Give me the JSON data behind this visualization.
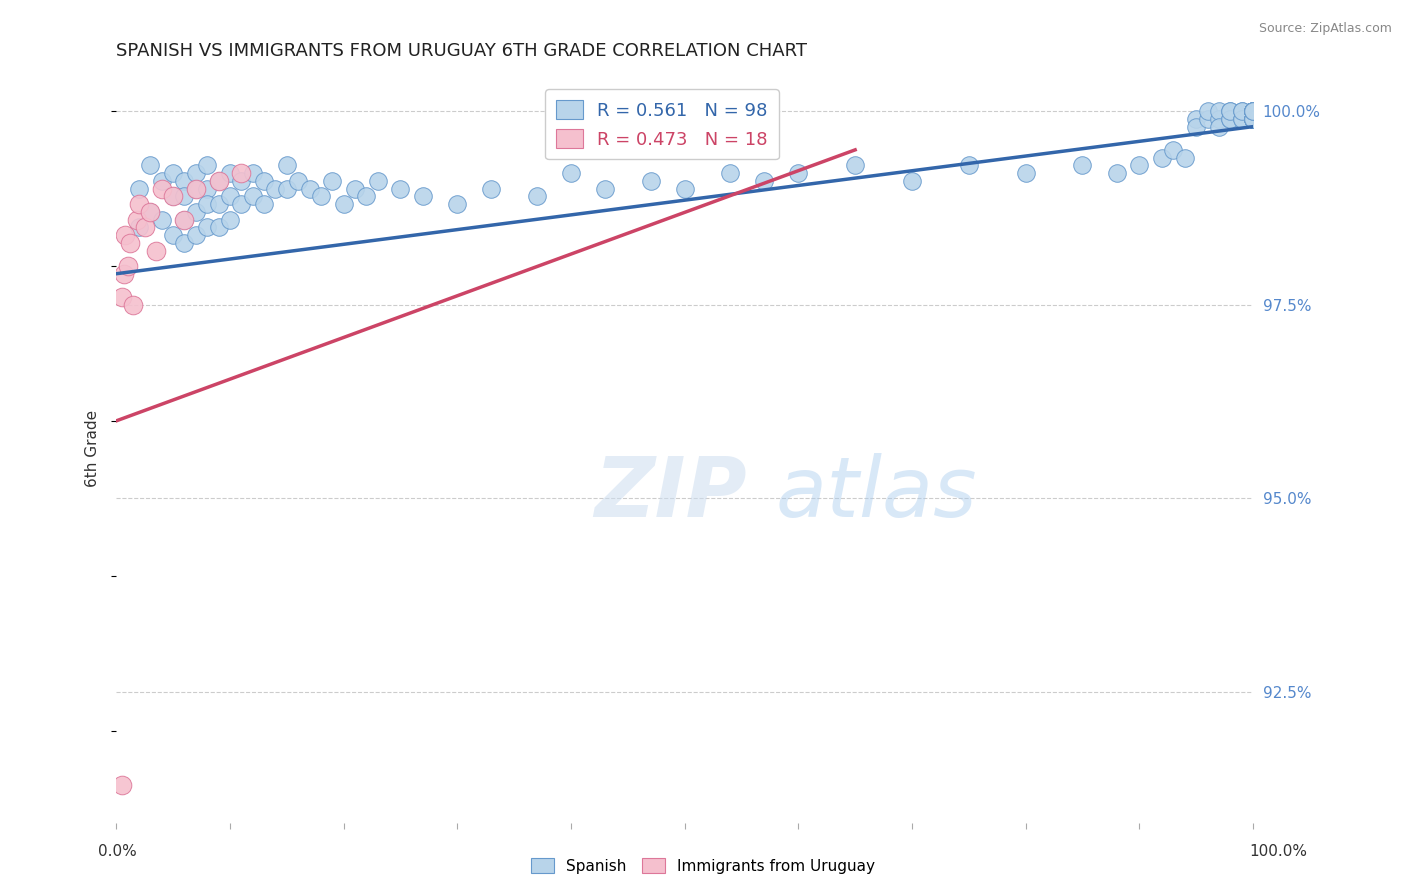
{
  "title": "SPANISH VS IMMIGRANTS FROM URUGUAY 6TH GRADE CORRELATION CHART",
  "source": "Source: ZipAtlas.com",
  "ylabel": "6th Grade",
  "ytick_labels": [
    "92.5%",
    "95.0%",
    "97.5%",
    "100.0%"
  ],
  "ytick_values": [
    0.925,
    0.95,
    0.975,
    1.0
  ],
  "xlim": [
    0.0,
    1.0
  ],
  "ylim": [
    0.908,
    1.005
  ],
  "legend_blue_r": "R = 0.561",
  "legend_blue_n": "N = 98",
  "legend_pink_r": "R = 0.473",
  "legend_pink_n": "N = 18",
  "blue_fill": "#b8d4ea",
  "blue_edge": "#6699cc",
  "pink_fill": "#f5c0ce",
  "pink_edge": "#dd7799",
  "blue_line": "#3366aa",
  "pink_line": "#cc4466",
  "title_fontsize": 13,
  "spanish_x": [
    0.02,
    0.02,
    0.03,
    0.03,
    0.04,
    0.04,
    0.05,
    0.05,
    0.05,
    0.06,
    0.06,
    0.06,
    0.06,
    0.07,
    0.07,
    0.07,
    0.07,
    0.08,
    0.08,
    0.08,
    0.08,
    0.09,
    0.09,
    0.09,
    0.1,
    0.1,
    0.1,
    0.11,
    0.11,
    0.12,
    0.12,
    0.13,
    0.13,
    0.14,
    0.15,
    0.15,
    0.16,
    0.17,
    0.18,
    0.19,
    0.2,
    0.21,
    0.22,
    0.23,
    0.25,
    0.27,
    0.3,
    0.33,
    0.37,
    0.4,
    0.43,
    0.47,
    0.5,
    0.54,
    0.57,
    0.6,
    0.65,
    0.7,
    0.75,
    0.8,
    0.85,
    0.88,
    0.9,
    0.92,
    0.93,
    0.94,
    0.95,
    0.95,
    0.96,
    0.96,
    0.97,
    0.97,
    0.97,
    0.98,
    0.98,
    0.98,
    0.98,
    0.99,
    0.99,
    0.99,
    0.99,
    1.0,
    1.0,
    1.0,
    1.0,
    1.0,
    1.0,
    1.0,
    1.0,
    1.0,
    1.0,
    1.0,
    1.0,
    1.0,
    1.0,
    1.0,
    1.0,
    1.0
  ],
  "spanish_y": [
    0.99,
    0.985,
    0.993,
    0.987,
    0.991,
    0.986,
    0.992,
    0.989,
    0.984,
    0.991,
    0.989,
    0.986,
    0.983,
    0.992,
    0.99,
    0.987,
    0.984,
    0.993,
    0.99,
    0.988,
    0.985,
    0.991,
    0.988,
    0.985,
    0.992,
    0.989,
    0.986,
    0.991,
    0.988,
    0.992,
    0.989,
    0.991,
    0.988,
    0.99,
    0.993,
    0.99,
    0.991,
    0.99,
    0.989,
    0.991,
    0.988,
    0.99,
    0.989,
    0.991,
    0.99,
    0.989,
    0.988,
    0.99,
    0.989,
    0.992,
    0.99,
    0.991,
    0.99,
    0.992,
    0.991,
    0.992,
    0.993,
    0.991,
    0.993,
    0.992,
    0.993,
    0.992,
    0.993,
    0.994,
    0.995,
    0.994,
    0.999,
    0.998,
    0.999,
    1.0,
    0.999,
    1.0,
    0.998,
    0.999,
    1.0,
    0.999,
    1.0,
    0.999,
    1.0,
    0.999,
    1.0,
    0.999,
    1.0,
    0.999,
    1.0,
    0.999,
    1.0,
    0.999,
    1.0,
    0.999,
    1.0,
    0.999,
    1.0,
    0.999,
    1.0,
    0.999,
    1.0,
    1.0
  ],
  "uruguay_x": [
    0.005,
    0.007,
    0.008,
    0.01,
    0.012,
    0.015,
    0.018,
    0.02,
    0.025,
    0.03,
    0.035,
    0.04,
    0.05,
    0.06,
    0.07,
    0.09,
    0.11,
    0.005
  ],
  "uruguay_y": [
    0.976,
    0.979,
    0.984,
    0.98,
    0.983,
    0.975,
    0.986,
    0.988,
    0.985,
    0.987,
    0.982,
    0.99,
    0.989,
    0.986,
    0.99,
    0.991,
    0.992,
    0.913
  ],
  "blue_trendline_x": [
    0.0,
    1.0
  ],
  "blue_trendline_y": [
    0.979,
    0.998
  ],
  "pink_trendline_x": [
    0.0,
    0.65
  ],
  "pink_trendline_y": [
    0.96,
    0.995
  ]
}
